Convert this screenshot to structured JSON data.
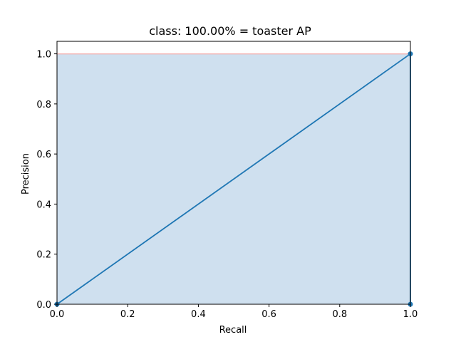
{
  "chart_data": {
    "type": "line",
    "title": "class: 100.00% = toaster AP",
    "xlabel": "Recall",
    "ylabel": "Precision",
    "xlim": [
      0.0,
      1.0
    ],
    "ylim": [
      0.0,
      1.05
    ],
    "xticks": [
      "0.0",
      "0.2",
      "0.4",
      "0.6",
      "0.8",
      "1.0"
    ],
    "yticks": [
      "0.0",
      "0.2",
      "0.4",
      "0.6",
      "0.8",
      "1.0"
    ],
    "grid": false,
    "legend": "none",
    "series": [
      {
        "x": [
          0.0,
          1.0,
          1.0
        ],
        "y": [
          0.0,
          1.0,
          0.0
        ],
        "color": "#1f77b4",
        "markers": true
      }
    ],
    "filled_area": {
      "x": [
        0.0,
        1.0
      ],
      "y": [
        1.0,
        1.0
      ],
      "baseline": 0.0,
      "fill_color": "#cfe0ef",
      "edge_color": "#f4b3b3"
    }
  }
}
